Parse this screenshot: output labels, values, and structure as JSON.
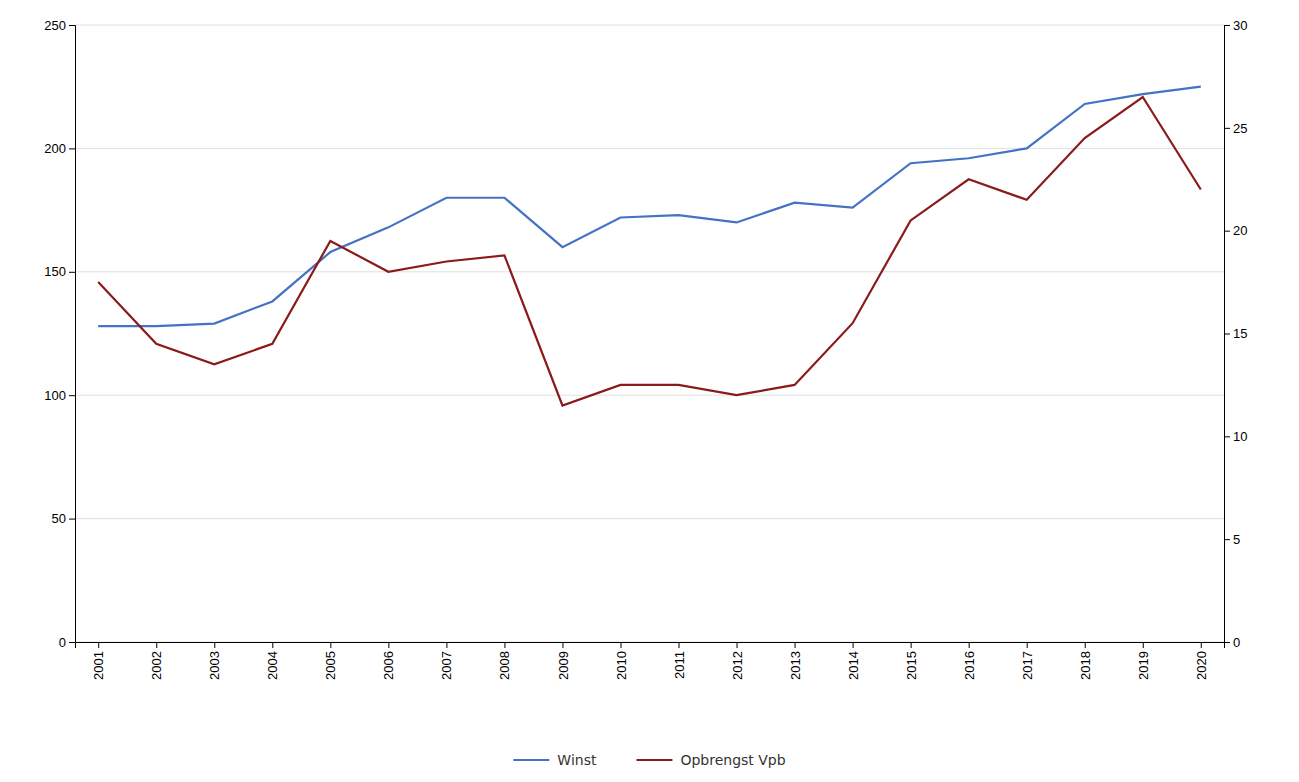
{
  "chart_data": {
    "type": "line",
    "x": [
      2001,
      2002,
      2003,
      2004,
      2005,
      2006,
      2007,
      2008,
      2009,
      2010,
      2011,
      2012,
      2013,
      2014,
      2015,
      2016,
      2017,
      2018,
      2019,
      2020
    ],
    "xlim": [
      2000.6,
      2020.4
    ],
    "xticks": [
      2001,
      2002,
      2003,
      2004,
      2005,
      2006,
      2007,
      2008,
      2009,
      2010,
      2011,
      2012,
      2013,
      2014,
      2015,
      2016,
      2017,
      2018,
      2019,
      2020
    ],
    "ylim": [
      0,
      250
    ],
    "yticks": [
      0,
      50,
      100,
      150,
      200,
      250
    ],
    "y2lim": [
      0,
      30
    ],
    "y2ticks": [
      0,
      5,
      10,
      15,
      20,
      25,
      30
    ],
    "grid": true,
    "legend": "bottom",
    "series": [
      {
        "name": "Winst",
        "color": "#4472C4",
        "values": [
          128,
          128,
          129,
          138,
          158,
          168,
          180,
          180,
          160,
          172,
          173,
          170,
          178,
          176,
          194,
          196,
          200,
          218,
          222,
          225
        ]
      },
      {
        "name": "Opbrengst Vpb",
        "color": "#8B1A1A",
        "axis": "y2",
        "values": [
          17.5,
          14.5,
          13.5,
          14.5,
          19.5,
          18.0,
          18.5,
          18.8,
          11.5,
          12.5,
          12.5,
          12.0,
          12.5,
          15.5,
          20.5,
          22.5,
          21.5,
          24.5,
          26.5,
          22.0
        ]
      }
    ]
  }
}
